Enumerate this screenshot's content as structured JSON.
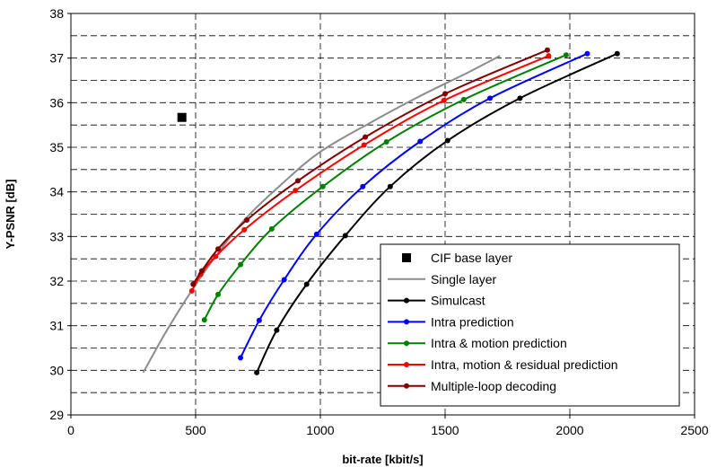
{
  "chart_data": {
    "type": "line",
    "xlabel": "bit-rate [kbit/s]",
    "ylabel": "Y-PSNR [dB]",
    "xlim": [
      0,
      2500
    ],
    "ylim": [
      29,
      38
    ],
    "xticks": [
      0,
      500,
      1000,
      1500,
      2000,
      2500
    ],
    "yticks": [
      29,
      30,
      31,
      32,
      33,
      34,
      35,
      36,
      37,
      38
    ],
    "grid": "dashed",
    "legend_position": "bottom-right",
    "points": [
      {
        "name": "CIF base layer",
        "x": 445,
        "y": 35.67,
        "color": "#000000",
        "marker": "square"
      }
    ],
    "series": [
      {
        "name": "Single layer",
        "color": "#8c8c8c",
        "markers": false,
        "x": [
          290,
          380,
          480,
          580,
          700,
          850,
          1000,
          1200,
          1400,
          1600,
          1720
        ],
        "y": [
          29.95,
          30.85,
          31.75,
          32.55,
          33.4,
          34.2,
          34.9,
          35.55,
          36.15,
          36.7,
          37.05
        ]
      },
      {
        "name": "Simulcast",
        "color": "#000000",
        "markers": true,
        "x": [
          745,
          825,
          945,
          1100,
          1280,
          1510,
          1800,
          2190
        ],
        "y": [
          29.95,
          30.9,
          31.93,
          33.02,
          34.12,
          35.15,
          36.1,
          37.1
        ]
      },
      {
        "name": "Intra prediction",
        "color": "#0000ff",
        "markers": true,
        "x": [
          680,
          755,
          855,
          985,
          1170,
          1400,
          1680,
          2070
        ],
        "y": [
          30.28,
          31.12,
          32.03,
          33.05,
          34.12,
          35.13,
          36.1,
          37.1
        ]
      },
      {
        "name": "Intra & motion prediction",
        "color": "#008000",
        "markers": true,
        "x": [
          535,
          590,
          680,
          805,
          1010,
          1265,
          1575,
          1985
        ],
        "y": [
          31.13,
          31.7,
          32.37,
          33.17,
          34.12,
          35.12,
          36.07,
          37.07
        ]
      },
      {
        "name": "Intra, motion & residual prediction",
        "color": "#ff0000",
        "markers": true,
        "x": [
          485,
          520,
          580,
          695,
          900,
          1175,
          1495,
          1915
        ],
        "y": [
          31.78,
          32.15,
          32.55,
          33.15,
          34.03,
          35.05,
          36.05,
          37.05
        ]
      },
      {
        "name": "Multiple-loop decoding",
        "color": "#800000",
        "markers": true,
        "x": [
          490,
          525,
          590,
          705,
          910,
          1180,
          1500,
          1910
        ],
        "y": [
          31.93,
          32.23,
          32.72,
          33.37,
          34.25,
          35.23,
          36.2,
          37.18
        ]
      }
    ]
  }
}
